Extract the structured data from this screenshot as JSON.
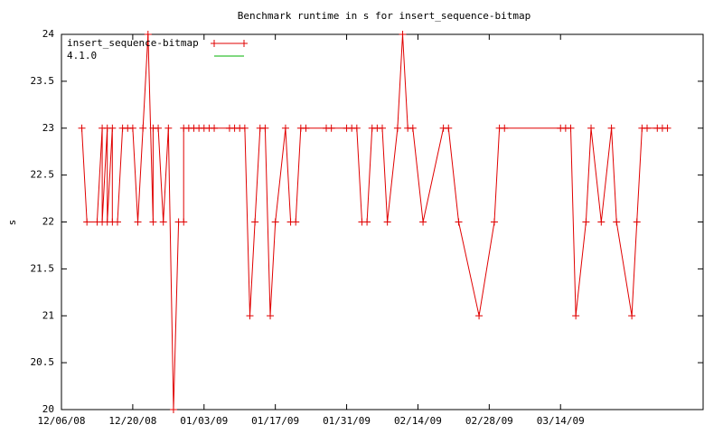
{
  "chart_data": {
    "type": "line",
    "title": "Benchmark runtime in s for insert_sequence-bitmap",
    "y_label": "s",
    "x": [
      "2008-12-10",
      "2008-12-11",
      "2008-12-13",
      "2008-12-14",
      "2008-12-14",
      "2008-12-15",
      "2008-12-15",
      "2008-12-16",
      "2008-12-16",
      "2008-12-17",
      "2008-12-18",
      "2008-12-19",
      "2008-12-20",
      "2008-12-21",
      "2008-12-22",
      "2008-12-23",
      "2008-12-24",
      "2008-12-24",
      "2008-12-25",
      "2008-12-26",
      "2008-12-27",
      "2008-12-28",
      "2008-12-29",
      "2008-12-30",
      "2008-12-30",
      "2008-12-31",
      "2009-01-01",
      "2009-01-02",
      "2009-01-03",
      "2009-01-04",
      "2009-01-05",
      "2009-01-08",
      "2009-01-09",
      "2009-01-10",
      "2009-01-11",
      "2009-01-12",
      "2009-01-13",
      "2009-01-14",
      "2009-01-15",
      "2009-01-16",
      "2009-01-17",
      "2009-01-19",
      "2009-01-20",
      "2009-01-21",
      "2009-01-22",
      "2009-01-23",
      "2009-01-27",
      "2009-01-28",
      "2009-01-31",
      "2009-02-01",
      "2009-02-02",
      "2009-02-03",
      "2009-02-04",
      "2009-02-05",
      "2009-02-06",
      "2009-02-07",
      "2009-02-08",
      "2009-02-10",
      "2009-02-11",
      "2009-02-12",
      "2009-02-13",
      "2009-02-15",
      "2009-02-19",
      "2009-02-20",
      "2009-02-22",
      "2009-02-26",
      "2009-03-01",
      "2009-03-02",
      "2009-03-03",
      "2009-03-14",
      "2009-03-15",
      "2009-03-16",
      "2009-03-17",
      "2009-03-19",
      "2009-03-20",
      "2009-03-22",
      "2009-03-24",
      "2009-03-25",
      "2009-03-28",
      "2009-03-29",
      "2009-03-30",
      "2009-03-31",
      "2009-04-02",
      "2009-04-03",
      "2009-04-04"
    ],
    "series": [
      {
        "name": "insert_sequence-bitmap",
        "color": "#e00000",
        "marker": "+",
        "values": [
          23,
          22,
          22,
          23,
          22,
          23,
          22,
          23,
          22,
          22,
          23,
          23,
          23,
          22,
          23,
          24,
          22,
          23,
          23,
          22,
          23,
          20,
          22,
          22,
          23,
          23,
          23,
          23,
          23,
          23,
          23,
          23,
          23,
          23,
          23,
          21,
          22,
          23,
          23,
          21,
          22,
          23,
          22,
          22,
          23,
          23,
          23,
          23,
          23,
          23,
          23,
          22,
          22,
          23,
          23,
          23,
          22,
          23,
          24,
          23,
          23,
          22,
          23,
          23,
          22,
          21,
          22,
          23,
          23,
          23,
          23,
          23,
          21,
          22,
          23,
          22,
          23,
          22,
          21,
          22,
          23,
          23,
          23,
          23,
          23
        ]
      },
      {
        "name": "4.1.0",
        "color": "#00b000",
        "values": [
          null,
          null,
          null,
          null,
          null,
          null,
          null,
          null,
          null,
          null,
          null,
          null,
          null,
          null,
          null,
          null,
          null,
          null,
          null,
          null,
          null,
          null,
          null,
          null,
          null,
          null,
          null,
          null,
          null,
          null,
          null,
          null,
          null,
          null,
          null,
          null,
          null,
          null,
          null,
          null,
          null,
          null,
          null,
          null,
          null,
          null,
          null,
          null,
          null,
          null,
          null,
          null,
          null,
          null,
          null,
          null,
          null,
          null,
          null,
          null,
          null,
          null,
          null,
          null,
          null,
          null,
          null,
          null,
          null,
          null,
          null,
          null,
          null,
          null,
          null,
          null,
          null,
          null,
          null,
          null,
          null,
          null,
          null,
          null,
          null
        ]
      }
    ],
    "xlim": [
      "2008-12-06",
      "2009-04-11"
    ],
    "xticks": [
      {
        "value": "2008-12-06",
        "label": "12/06/08"
      },
      {
        "value": "2008-12-20",
        "label": "12/20/08"
      },
      {
        "value": "2009-01-03",
        "label": "01/03/09"
      },
      {
        "value": "2009-01-17",
        "label": "01/17/09"
      },
      {
        "value": "2009-01-31",
        "label": "01/31/09"
      },
      {
        "value": "2009-02-14",
        "label": "02/14/09"
      },
      {
        "value": "2009-02-28",
        "label": "02/28/09"
      },
      {
        "value": "2009-03-14",
        "label": "03/14/09"
      }
    ],
    "ylim": [
      20,
      24
    ],
    "yticks": [
      20,
      20.5,
      21,
      21.5,
      22,
      22.5,
      23,
      23.5,
      24
    ],
    "legend": "top-left"
  }
}
